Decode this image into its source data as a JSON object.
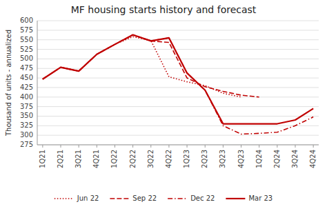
{
  "chart_data": {
    "type": "line",
    "title": "MF housing starts history and forecast",
    "ylabel": "Thousand of units - annualized",
    "categories": [
      "1Q21",
      "2Q21",
      "3Q21",
      "4Q21",
      "1Q22",
      "2Q22",
      "3Q22",
      "4Q22",
      "1Q23",
      "2Q23",
      "3Q23",
      "4Q23",
      "1Q24",
      "2Q24",
      "3Q24",
      "4Q24"
    ],
    "series": [
      {
        "name": "Jun 22",
        "color": "#c00000",
        "line_style": "dotted",
        "values": [
          447,
          478,
          468,
          512,
          538,
          558,
          548,
          453,
          440,
          430,
          410,
          400,
          null,
          null,
          null,
          null
        ]
      },
      {
        "name": "Sep 22",
        "color": "#c00000",
        "line_style": "dashed",
        "values": [
          447,
          478,
          468,
          512,
          538,
          563,
          547,
          543,
          450,
          427,
          415,
          405,
          400,
          null,
          null,
          null
        ]
      },
      {
        "name": "Dec 22",
        "color": "#c00000",
        "line_style": "dashdot",
        "values": [
          447,
          478,
          468,
          512,
          538,
          563,
          547,
          555,
          463,
          418,
          325,
          303,
          305,
          308,
          325,
          348
        ]
      },
      {
        "name": "Mar 23",
        "color": "#c00000",
        "line_style": "solid",
        "values": [
          447,
          478,
          468,
          512,
          538,
          563,
          547,
          555,
          463,
          418,
          330,
          330,
          330,
          330,
          340,
          370
        ]
      }
    ],
    "ylim": [
      275,
      600
    ],
    "yticks": [
      275,
      300,
      325,
      350,
      375,
      400,
      425,
      450,
      475,
      500,
      525,
      550,
      575,
      600
    ],
    "grid": true,
    "legend": "bottom"
  }
}
